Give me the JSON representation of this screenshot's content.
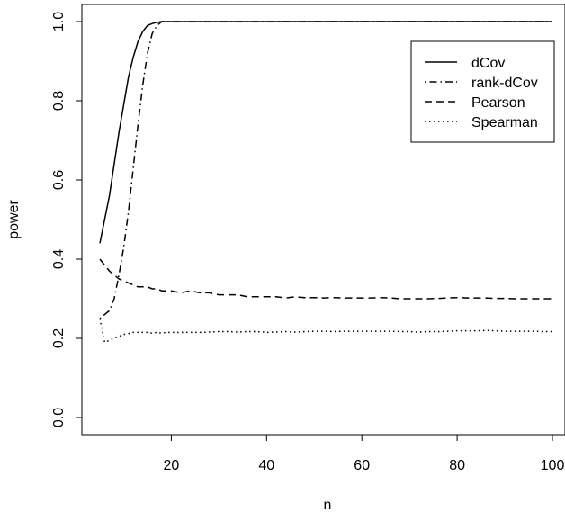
{
  "chart_data": {
    "type": "line",
    "xlabel": "n",
    "ylabel": "power",
    "xlim": [
      2.5,
      102
    ],
    "ylim": [
      -0.04,
      1.04
    ],
    "x_ticks": [
      20,
      40,
      60,
      80,
      100
    ],
    "x_tick_labels": [
      "20",
      "40",
      "60",
      "80",
      "100"
    ],
    "y_ticks": [
      0.0,
      0.2,
      0.4,
      0.6,
      0.8,
      1.0
    ],
    "y_tick_labels": [
      "0.0",
      "0.2",
      "0.4",
      "0.6",
      "0.8",
      "1.0"
    ],
    "grid": false,
    "legend_position": "top-right",
    "x": [
      5,
      6,
      7,
      8,
      9,
      10,
      11,
      12,
      13,
      14,
      15,
      16,
      17,
      18,
      19,
      20,
      22,
      24,
      26,
      28,
      30,
      32,
      34,
      36,
      38,
      40,
      42,
      44,
      46,
      48,
      50,
      52,
      54,
      56,
      58,
      60,
      62,
      64,
      66,
      68,
      70,
      72,
      74,
      76,
      78,
      80,
      82,
      84,
      86,
      88,
      90,
      92,
      94,
      96,
      98,
      100
    ],
    "series": [
      {
        "name": "dCov",
        "line_style": "solid",
        "values": [
          0.44,
          0.5,
          0.56,
          0.64,
          0.72,
          0.79,
          0.86,
          0.91,
          0.95,
          0.975,
          0.99,
          0.995,
          0.998,
          1.0,
          1.0,
          1.0,
          1.0,
          1.0,
          1.0,
          1.0,
          1.0,
          1.0,
          1.0,
          1.0,
          1.0,
          1.0,
          1.0,
          1.0,
          1.0,
          1.0,
          1.0,
          1.0,
          1.0,
          1.0,
          1.0,
          1.0,
          1.0,
          1.0,
          1.0,
          1.0,
          1.0,
          1.0,
          1.0,
          1.0,
          1.0,
          1.0,
          1.0,
          1.0,
          1.0,
          1.0,
          1.0,
          1.0,
          1.0,
          1.0,
          1.0,
          1.0
        ]
      },
      {
        "name": "rank-dCov",
        "line_style": "dotdash",
        "values": [
          0.25,
          0.26,
          0.27,
          0.3,
          0.36,
          0.43,
          0.52,
          0.63,
          0.74,
          0.84,
          0.92,
          0.97,
          0.99,
          1.0,
          1.0,
          1.0,
          1.0,
          1.0,
          1.0,
          1.0,
          1.0,
          1.0,
          1.0,
          1.0,
          1.0,
          1.0,
          1.0,
          1.0,
          1.0,
          1.0,
          1.0,
          1.0,
          1.0,
          1.0,
          1.0,
          1.0,
          1.0,
          1.0,
          1.0,
          1.0,
          1.0,
          1.0,
          1.0,
          1.0,
          1.0,
          1.0,
          1.0,
          1.0,
          1.0,
          1.0,
          1.0,
          1.0,
          1.0,
          1.0,
          1.0,
          1.0
        ]
      },
      {
        "name": "Pearson",
        "line_style": "dashed",
        "values": [
          0.4,
          0.385,
          0.37,
          0.36,
          0.35,
          0.345,
          0.34,
          0.335,
          0.33,
          0.33,
          0.33,
          0.325,
          0.325,
          0.32,
          0.32,
          0.32,
          0.315,
          0.32,
          0.315,
          0.315,
          0.31,
          0.31,
          0.31,
          0.305,
          0.305,
          0.305,
          0.305,
          0.302,
          0.305,
          0.303,
          0.303,
          0.302,
          0.303,
          0.302,
          0.302,
          0.302,
          0.302,
          0.303,
          0.302,
          0.3,
          0.3,
          0.3,
          0.3,
          0.301,
          0.302,
          0.303,
          0.302,
          0.302,
          0.302,
          0.301,
          0.301,
          0.3,
          0.3,
          0.3,
          0.3,
          0.3
        ]
      },
      {
        "name": "Spearman",
        "line_style": "dotted",
        "values": [
          0.25,
          0.19,
          0.195,
          0.2,
          0.205,
          0.21,
          0.212,
          0.215,
          0.215,
          0.215,
          0.215,
          0.213,
          0.215,
          0.213,
          0.215,
          0.215,
          0.215,
          0.215,
          0.215,
          0.216,
          0.217,
          0.217,
          0.216,
          0.217,
          0.217,
          0.215,
          0.216,
          0.217,
          0.216,
          0.217,
          0.218,
          0.218,
          0.217,
          0.218,
          0.218,
          0.218,
          0.218,
          0.218,
          0.218,
          0.217,
          0.217,
          0.216,
          0.217,
          0.217,
          0.218,
          0.219,
          0.219,
          0.219,
          0.22,
          0.219,
          0.218,
          0.218,
          0.218,
          0.218,
          0.217,
          0.217
        ]
      }
    ]
  }
}
